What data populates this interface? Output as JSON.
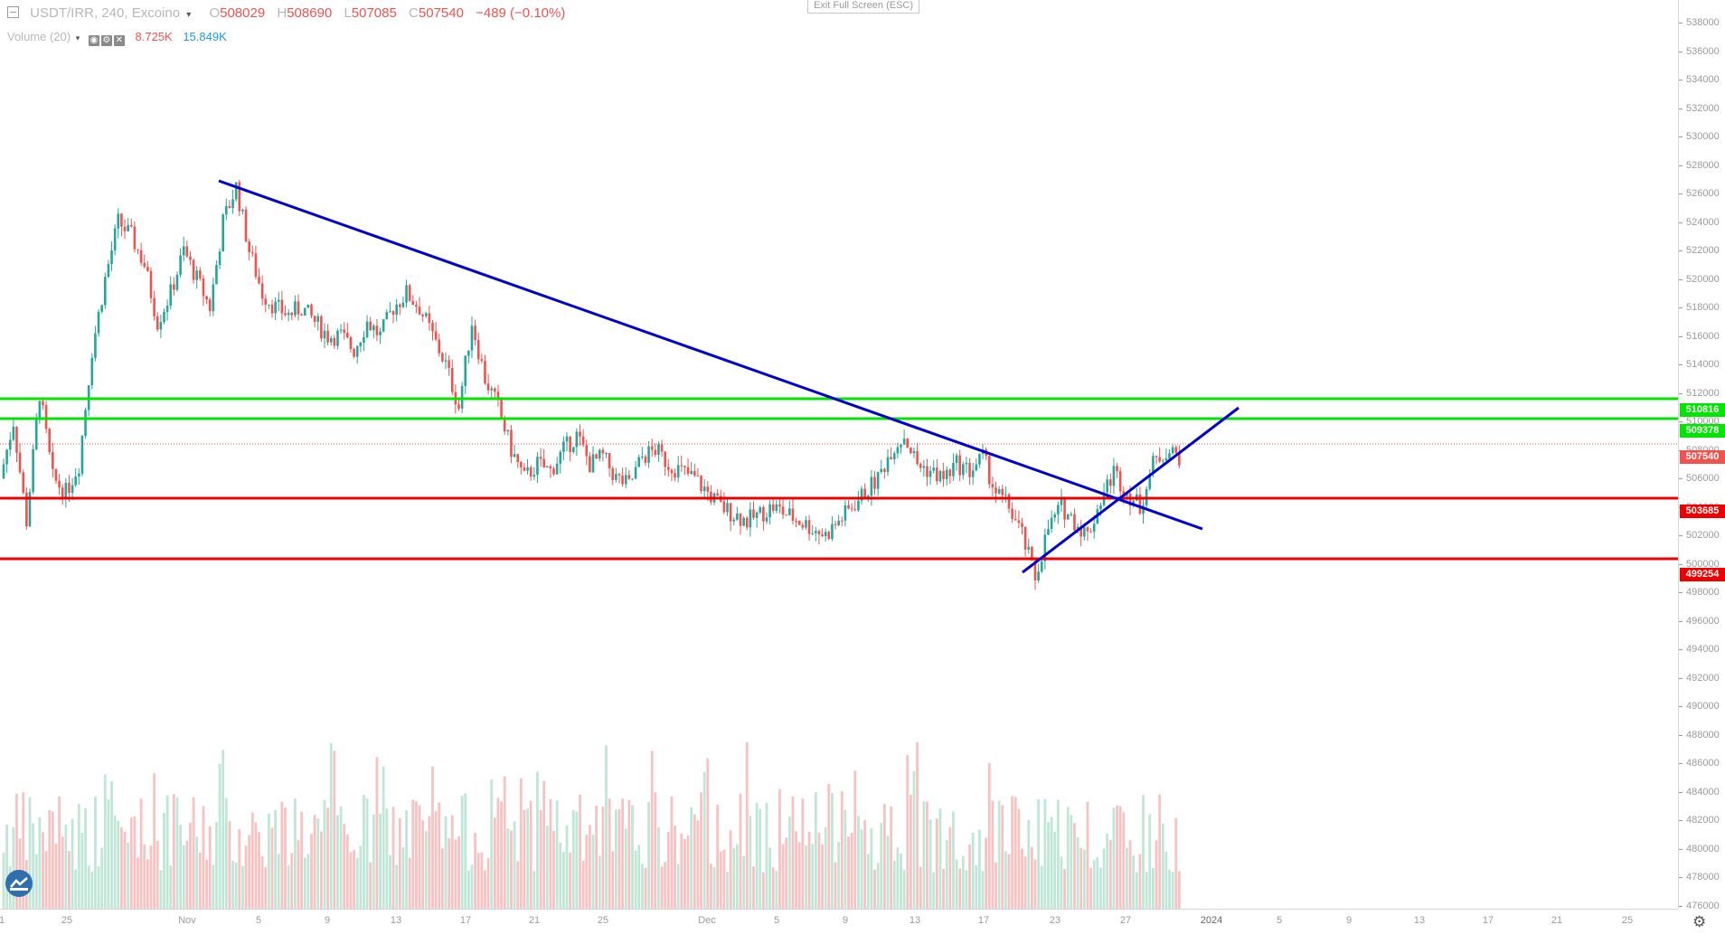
{
  "legend": {
    "symbol": "USDT/IRR, 240, Excoino",
    "o_label": "O",
    "o_value": "508029",
    "h_label": "H",
    "h_value": "508690",
    "l_label": "L",
    "l_value": "507085",
    "c_label": "C",
    "c_value": "507540",
    "change": "−489 (−0.10%)"
  },
  "volume_legend": {
    "label": "Volume (20)",
    "value1": "8.725K",
    "value2": "15.849K"
  },
  "exit_fullscreen": "Exit Full Screen (ESC)",
  "price_axis_ticks": [
    "538000",
    "536000",
    "534000",
    "532000",
    "530000",
    "528000",
    "526000",
    "524000",
    "522000",
    "520000",
    "518000",
    "516000",
    "514000",
    "512000",
    "510000",
    "508000",
    "506000",
    "504000",
    "502000",
    "500000",
    "498000",
    "496000",
    "494000",
    "492000",
    "490000",
    "488000",
    "486000",
    "484000",
    "482000",
    "480000",
    "478000",
    "476000"
  ],
  "time_axis_ticks": [
    "1",
    "25",
    "Nov",
    "5",
    "9",
    "13",
    "17",
    "21",
    "25",
    "Dec",
    "5",
    "9",
    "13",
    "17",
    "23",
    "27",
    "2024",
    "5",
    "9",
    "13",
    "17",
    "21",
    "25"
  ],
  "price_tags": [
    {
      "value": "510816",
      "color": "#00e600"
    },
    {
      "value": "509378",
      "color": "#00e600"
    },
    {
      "value": "507540",
      "color": "#ef5350"
    },
    {
      "value": "503685",
      "color": "#ef0000"
    },
    {
      "value": "499254",
      "color": "#ef0000"
    }
  ],
  "colors": {
    "up": "#26a69a",
    "down": "#ef5350",
    "trendline": "#0000cc",
    "support": "#ef0000",
    "resistance": "#00e600"
  },
  "chart_data": {
    "type": "candlestick",
    "symbol": "USDT/IRR",
    "interval": "240",
    "exchange": "Excoino",
    "ylim": [
      476000,
      539000
    ],
    "last_price": 507540,
    "support_levels": [
      503685,
      499254
    ],
    "resistance_levels": [
      510816,
      509378
    ],
    "closes_approx": [
      506000,
      510000,
      503000,
      512000,
      506000,
      505000,
      507000,
      515000,
      520000,
      524000,
      523000,
      521000,
      517000,
      519000,
      522000,
      520000,
      518000,
      524000,
      526500,
      522000,
      519000,
      518000,
      517500,
      518000,
      517000,
      516000,
      516000,
      515000,
      517000,
      516000,
      518000,
      519000,
      518000,
      516000,
      514000,
      511000,
      517000,
      513000,
      511000,
      508000,
      506000,
      507000,
      506500,
      508000,
      509000,
      507000,
      507500,
      506000,
      505500,
      507500,
      508000,
      507000,
      506500,
      506000,
      505000,
      504000,
      503500,
      503000,
      503500,
      504000,
      503500,
      503000,
      502500,
      502000,
      503000,
      504000,
      505000,
      506000,
      508000,
      509000,
      507000,
      506500,
      506000,
      507000,
      506500,
      507500,
      505000,
      504000,
      502000,
      499000,
      502500,
      504000,
      503000,
      502000,
      504500,
      506500,
      505000,
      504000,
      507000,
      508000,
      507540
    ],
    "volume_up_color": "#26a69a",
    "volume_down_color": "#ef5350"
  }
}
